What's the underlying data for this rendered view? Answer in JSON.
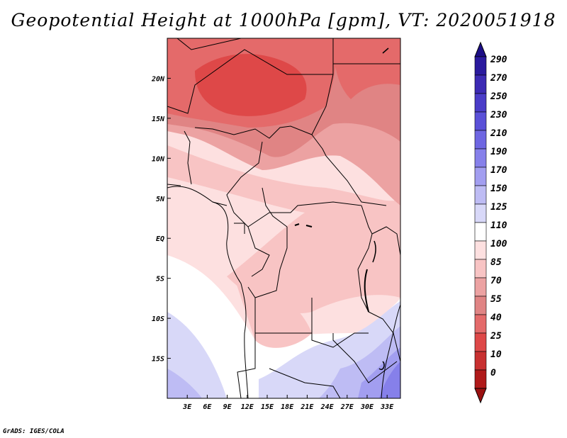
{
  "title": "Geopotential Height at 1000hPa [gpm], VT: 2020051918",
  "credit": "GrADS: IGES/COLA",
  "map": {
    "lon_range": [
      0,
      35
    ],
    "lat_range": [
      -20,
      25
    ],
    "lon_ticks": [
      {
        "lon": 3,
        "label": "3E"
      },
      {
        "lon": 6,
        "label": "6E"
      },
      {
        "lon": 9,
        "label": "9E"
      },
      {
        "lon": 12,
        "label": "12E"
      },
      {
        "lon": 15,
        "label": "15E"
      },
      {
        "lon": 18,
        "label": "18E"
      },
      {
        "lon": 21,
        "label": "21E"
      },
      {
        "lon": 24,
        "label": "24E"
      },
      {
        "lon": 27,
        "label": "27E"
      },
      {
        "lon": 30,
        "label": "30E"
      },
      {
        "lon": 33,
        "label": "33E"
      }
    ],
    "lat_ticks": [
      {
        "lat": 20,
        "label": "20N"
      },
      {
        "lat": 15,
        "label": "15N"
      },
      {
        "lat": 10,
        "label": "10N"
      },
      {
        "lat": 5,
        "label": "5N"
      },
      {
        "lat": 0,
        "label": "EQ"
      },
      {
        "lat": -5,
        "label": "5S"
      },
      {
        "lat": -10,
        "label": "10S"
      },
      {
        "lat": -15,
        "label": "15S"
      }
    ]
  },
  "colorbar": {
    "levels": [
      {
        "label": "290",
        "color": "#2a1a9e"
      },
      {
        "label": "270",
        "color": "#3c2ab4"
      },
      {
        "label": "250",
        "color": "#4a3cc8"
      },
      {
        "label": "230",
        "color": "#5a50d8"
      },
      {
        "label": "210",
        "color": "#6e66e2"
      },
      {
        "label": "190",
        "color": "#8680ea"
      },
      {
        "label": "170",
        "color": "#a29ef0"
      },
      {
        "label": "150",
        "color": "#bebcf4"
      },
      {
        "label": "125",
        "color": "#d8d8f8"
      },
      {
        "label": "110",
        "color": "#ffffff"
      },
      {
        "label": "100",
        "color": "#fde0e0"
      },
      {
        "label": "85",
        "color": "#f8c4c4"
      },
      {
        "label": "70",
        "color": "#eca2a2"
      },
      {
        "label": "55",
        "color": "#e08484"
      },
      {
        "label": "40",
        "color": "#e46a6a"
      },
      {
        "label": "25",
        "color": "#de4848"
      },
      {
        "label": "10",
        "color": "#c83030"
      },
      {
        "label": "0",
        "color": "#b01a1a"
      }
    ],
    "top_color": "#1c0e86",
    "bottom_color": "#9a1010"
  }
}
